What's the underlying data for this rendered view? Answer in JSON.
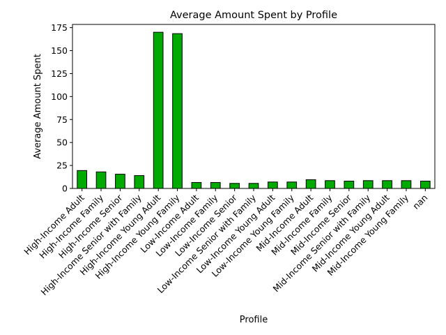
{
  "chart_data": {
    "type": "bar",
    "title": "Average Amount Spent by Profile",
    "xlabel": "Profile",
    "ylabel": "Average Amount Spent",
    "categories": [
      "High-Income Adult",
      "High-Income Family",
      "High-Income Senior",
      "High-Income Senior with Family",
      "High-Income Young Adult",
      "High-Income Young Family",
      "Low-Income Adult",
      "Low-Income Family",
      "Low-Income Senior",
      "Low-Income Senior with Family",
      "Low-Income Young Adult",
      "Low-Income Young Family",
      "Mid-Income Adult",
      "Mid-Income Family",
      "Mid-Income Senior",
      "Mid-Income Senior with Family",
      "Mid-Income Young Adult",
      "Mid-Income Young Family",
      "nan"
    ],
    "values": [
      19.5,
      18.0,
      15.5,
      14.0,
      170.0,
      168.5,
      6.5,
      6.5,
      5.5,
      5.5,
      7.0,
      7.0,
      9.5,
      8.5,
      8.0,
      8.5,
      8.5,
      8.5,
      8.0
    ],
    "yticks": [
      0,
      25,
      50,
      75,
      100,
      125,
      150,
      175
    ],
    "ylim": [
      0,
      178.5
    ],
    "grid": false,
    "legend": "none",
    "bar_color": "#00aa00",
    "edge_color": "#000000"
  }
}
